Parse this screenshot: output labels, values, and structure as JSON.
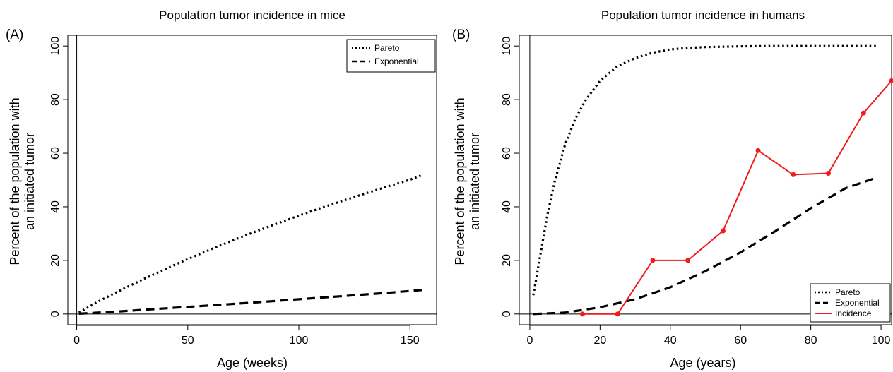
{
  "chart_data": [
    {
      "type": "line",
      "panel_label": "(A)",
      "title": "Population tumor incidence in mice",
      "xlabel": "Age (weeks)",
      "ylabel_lines": [
        "Percent of the population with",
        "an initiated tumor"
      ],
      "xlim": [
        -4,
        162
      ],
      "ylim": [
        -4,
        104
      ],
      "xticks": [
        0,
        50,
        100,
        150
      ],
      "yticks": [
        0,
        20,
        40,
        60,
        80,
        100
      ],
      "hline": 0,
      "vline": 0,
      "legend": {
        "position": "top-right",
        "entries": [
          "Pareto",
          "Exponential"
        ]
      },
      "series": [
        {
          "name": "Pareto",
          "style": "dotted",
          "color": "#000000",
          "x": [
            1,
            10,
            20,
            30,
            40,
            50,
            60,
            70,
            80,
            90,
            100,
            110,
            120,
            130,
            140,
            150,
            156
          ],
          "y": [
            0.5,
            4.8,
            9,
            13,
            16.8,
            20.5,
            24,
            27.4,
            30.6,
            33.7,
            36.7,
            39.6,
            42.3,
            45,
            47.6,
            50.1,
            52
          ]
        },
        {
          "name": "Exponential",
          "style": "dashed",
          "color": "#000000",
          "x": [
            1,
            20,
            40,
            60,
            80,
            100,
            120,
            140,
            156
          ],
          "y": [
            0.1,
            1,
            2.1,
            3.2,
            4.3,
            5.5,
            6.7,
            7.9,
            9
          ]
        }
      ]
    },
    {
      "type": "line",
      "panel_label": "(B)",
      "title": "Population tumor incidence in humans",
      "xlabel": "Age (years)",
      "ylabel_lines": [
        "Percent of the population with",
        "an initiated tumor"
      ],
      "xlim": [
        -3,
        103
      ],
      "ylim": [
        -4,
        104
      ],
      "xticks": [
        0,
        20,
        40,
        60,
        80,
        100
      ],
      "yticks": [
        0,
        20,
        40,
        60,
        80,
        100
      ],
      "hline": 0,
      "vline": 0,
      "legend": {
        "position": "bottom-right",
        "entries": [
          "Pareto",
          "Exponential",
          "Incidence"
        ]
      },
      "series": [
        {
          "name": "Pareto",
          "style": "dotted",
          "color": "#000000",
          "x": [
            1,
            3,
            5,
            7,
            10,
            13,
            16,
            20,
            25,
            30,
            35,
            40,
            45,
            50,
            60,
            70,
            80,
            90,
            99
          ],
          "y": [
            7,
            22,
            37,
            49,
            63,
            73,
            80,
            87,
            92.5,
            95.5,
            97.5,
            98.7,
            99.3,
            99.6,
            99.9,
            100,
            100,
            100,
            100
          ]
        },
        {
          "name": "Exponential",
          "style": "dashed",
          "color": "#000000",
          "x": [
            1,
            10,
            20,
            30,
            40,
            50,
            60,
            70,
            80,
            90,
            99
          ],
          "y": [
            0,
            0.5,
            2.5,
            5.5,
            10,
            16,
            23,
            31,
            39.5,
            47,
            51
          ]
        },
        {
          "name": "Incidence",
          "style": "solid-points",
          "color": "#ee1c1c",
          "x": [
            15,
            25,
            35,
            45,
            55,
            65,
            75,
            85,
            95,
            103
          ],
          "y": [
            0,
            0,
            20,
            20,
            31,
            61,
            52,
            52.5,
            75,
            87
          ]
        }
      ]
    }
  ]
}
